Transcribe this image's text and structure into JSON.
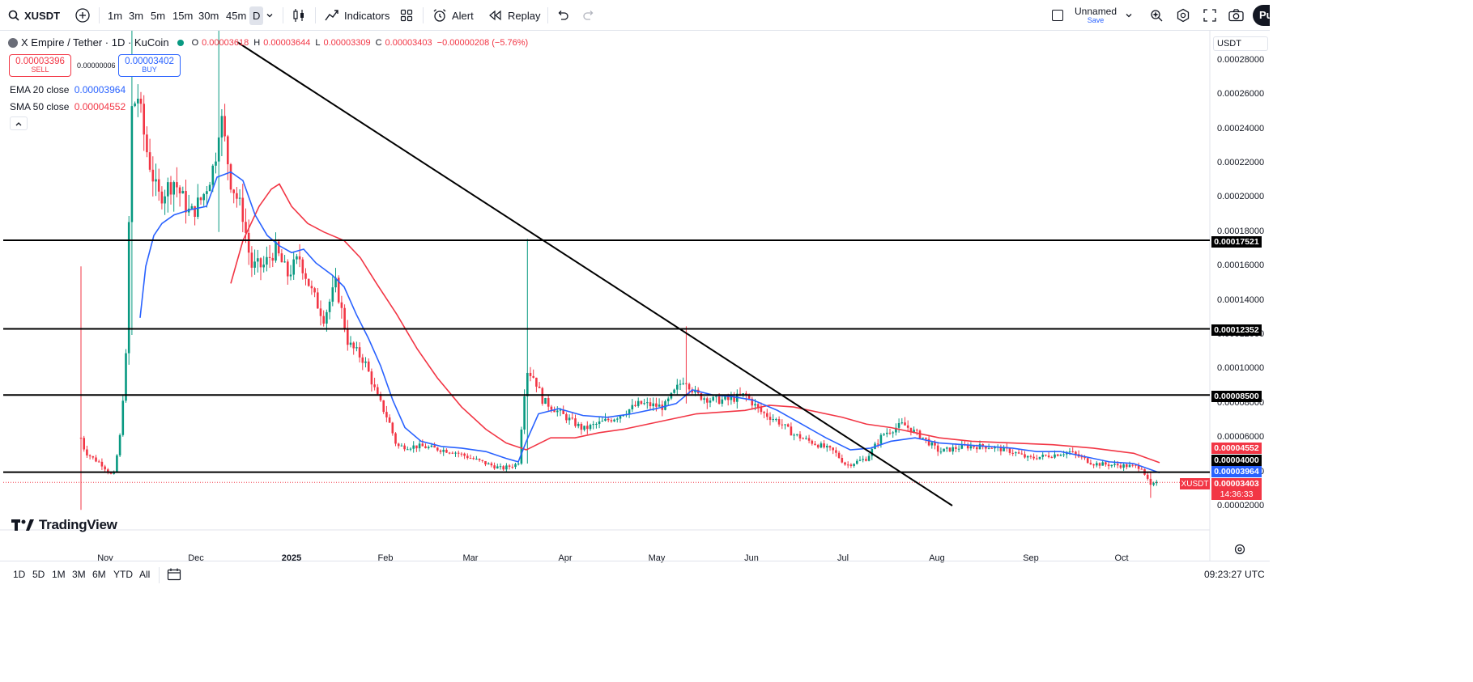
{
  "toolbar": {
    "symbol": "XUSDT",
    "intervals": [
      "1m",
      "3m",
      "5m",
      "15m",
      "30m",
      "45m",
      "D"
    ],
    "indicators_label": "Indicators",
    "alert_label": "Alert",
    "replay_label": "Replay",
    "layout_name": "Unnamed",
    "save_label": "Save",
    "publish_label": "Pu"
  },
  "legend": {
    "title": "X Empire / Tether · 1D · KuCoin",
    "o_label": "O",
    "o_value": "0.00003618",
    "h_label": "H",
    "h_value": "0.00003644",
    "l_label": "L",
    "l_value": "0.00003309",
    "c_label": "C",
    "c_value": "0.00003403",
    "change": "−0.00000208 (−5.76%)",
    "sell_price": "0.00003396",
    "sell_label": "SELL",
    "spread": "0.00000006",
    "buy_price": "0.00003402",
    "buy_label": "BUY",
    "ema_label": "EMA 20 close",
    "ema_value": "0.00003964",
    "sma_label": "SMA 50 close",
    "sma_value": "0.00004552"
  },
  "price_axis": {
    "currency": "USDT",
    "ticks": [
      "0.00028000",
      "0.00026000",
      "0.00024000",
      "0.00022000",
      "0.00020000",
      "0.00018000",
      "0.00016000",
      "0.00014000",
      "0.00012000",
      "0.00010000",
      "0.00008000",
      "0.00006000",
      "0.00004000",
      "0.00002000"
    ]
  },
  "time_axis": {
    "labels": [
      "Nov",
      "Dec",
      "2025",
      "Feb",
      "Mar",
      "Apr",
      "May",
      "Jun",
      "Jul",
      "Aug",
      "Sep",
      "Oct"
    ]
  },
  "horizontal_lines": [
    {
      "value": 0.00017521,
      "label": "0.00017521"
    },
    {
      "value": 0.00012352,
      "label": "0.00012352"
    },
    {
      "value": 8.5e-05,
      "label": "0.00008500"
    },
    {
      "value": 4e-05,
      "label": "0.00004000"
    }
  ],
  "price_tags": {
    "sma": "0.00004552",
    "level": "0.00004000",
    "ema": "0.00003964",
    "last": "0.00003403",
    "countdown": "14:36:33",
    "symbol_tag": "XUSDT"
  },
  "colors": {
    "up": "#089981",
    "down": "#f23645",
    "ema": "#2962ff",
    "sma": "#f23645",
    "line": "#000000"
  },
  "branding": "TradingView",
  "bottom": {
    "ranges": [
      "1D",
      "5D",
      "1M",
      "3M",
      "6M",
      "YTD",
      "All"
    ],
    "clock": "09:23:27 UTC"
  },
  "chart_data": {
    "type": "candlestick",
    "symbol": "X Empire / Tether",
    "interval": "1D",
    "exchange": "KuCoin",
    "x_range": [
      "2024-10-24",
      "2025-10-13"
    ],
    "ylim": [
      1e-05,
      0.000295
    ],
    "candles_approx": [
      {
        "date": "2024-10-24",
        "o": 8.5e-05,
        "h": 0.00016,
        "l": 1.8e-05,
        "c": 6e-05
      },
      {
        "date": "2024-11-01",
        "o": 5.5e-05,
        "h": 6e-05,
        "l": 3.8e-05,
        "c": 4.5e-05
      },
      {
        "date": "2024-11-06",
        "o": 4e-05,
        "h": 0.00016,
        "l": 3.8e-05,
        "c": 0.00012
      },
      {
        "date": "2024-11-10",
        "o": 0.00012,
        "h": 0.00029,
        "l": 0.00011,
        "c": 0.00026
      },
      {
        "date": "2024-11-20",
        "o": 0.00022,
        "h": 0.00024,
        "l": 0.00018,
        "c": 0.0002
      },
      {
        "date": "2024-12-08",
        "o": 0.0002,
        "h": 0.00029,
        "l": 0.00018,
        "c": 0.00025
      },
      {
        "date": "2024-12-15",
        "o": 0.00022,
        "h": 0.00024,
        "l": 0.00018,
        "c": 0.00019
      },
      {
        "date": "2025-01-01",
        "o": 0.00017,
        "h": 0.000185,
        "l": 0.00013,
        "c": 0.00016
      },
      {
        "date": "2025-01-20",
        "o": 0.00014,
        "h": 0.000165,
        "l": 0.00012,
        "c": 0.00011
      },
      {
        "date": "2025-02-01",
        "o": 9e-05,
        "h": 0.0001,
        "l": 6e-05,
        "c": 5.5e-05
      },
      {
        "date": "2025-03-01",
        "o": 5.2e-05,
        "h": 5.8e-05,
        "l": 3.8e-05,
        "c": 4.5e-05
      },
      {
        "date": "2025-03-18",
        "o": 4.5e-05,
        "h": 0.000175,
        "l": 4.2e-05,
        "c": 0.000125
      },
      {
        "date": "2025-04-01",
        "o": 8.5e-05,
        "h": 9e-05,
        "l": 5.8e-05,
        "c": 6.8e-05
      },
      {
        "date": "2025-05-10",
        "o": 8e-05,
        "h": 0.000125,
        "l": 7.5e-05,
        "c": 0.000115
      },
      {
        "date": "2025-06-01",
        "o": 7.8e-05,
        "h": 8e-05,
        "l": 6e-05,
        "c": 6.5e-05
      },
      {
        "date": "2025-07-01",
        "o": 4.8e-05,
        "h": 5.5e-05,
        "l": 4e-05,
        "c": 4.5e-05
      },
      {
        "date": "2025-07-20",
        "o": 6e-05,
        "h": 7e-05,
        "l": 5.5e-05,
        "c": 6.5e-05
      },
      {
        "date": "2025-09-01",
        "o": 5e-05,
        "h": 5.8e-05,
        "l": 4.5e-05,
        "c": 5e-05
      },
      {
        "date": "2025-10-08",
        "o": 4.4e-05,
        "h": 4.5e-05,
        "l": 2.5e-05,
        "c": 3.2e-05
      },
      {
        "date": "2025-10-13",
        "o": 3.618e-05,
        "h": 3.644e-05,
        "l": 3.309e-05,
        "c": 3.403e-05
      }
    ],
    "ema20": {
      "name": "EMA 20 close",
      "last": 3.964e-05
    },
    "sma50": {
      "name": "SMA 50 close",
      "last": 4.552e-05
    },
    "trendline": {
      "from": {
        "date": "2024-12-18",
        "value": 0.000285
      },
      "to": {
        "date": "2025-08-05",
        "value": 2e-05
      }
    }
  }
}
